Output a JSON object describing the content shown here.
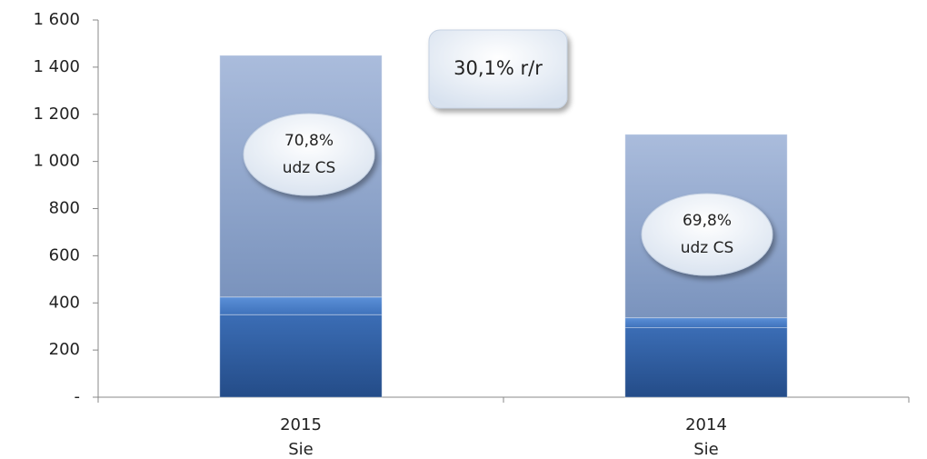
{
  "chart_data": {
    "type": "stacked-bar",
    "categories": [
      [
        "2015",
        "Sie"
      ],
      [
        "2014",
        "Sie"
      ]
    ],
    "series": [
      {
        "color": "#2f5e9f",
        "values": [
          350,
          295
        ]
      },
      {
        "color": "#4a80c8",
        "values": [
          75,
          42
        ]
      },
      {
        "color": "#8ea5cb",
        "values": [
          1025,
          778
        ]
      }
    ],
    "ylim": [
      0,
      1600
    ],
    "yticks": [
      {
        "value": 0,
        "label": "-"
      },
      200,
      400,
      600,
      800,
      {
        "value": 1000,
        "label": "1 000"
      },
      {
        "value": 1200,
        "label": "1 200"
      },
      {
        "value": 1400,
        "label": "1 400"
      },
      {
        "value": 1600,
        "label": "1 600"
      }
    ],
    "annotations": [
      {
        "lines": [
          "70,8%",
          "udz CS"
        ]
      },
      {
        "lines": [
          "69,8%",
          "udz CS"
        ]
      },
      {
        "lines": [
          "30,1% r/r"
        ]
      }
    ]
  }
}
